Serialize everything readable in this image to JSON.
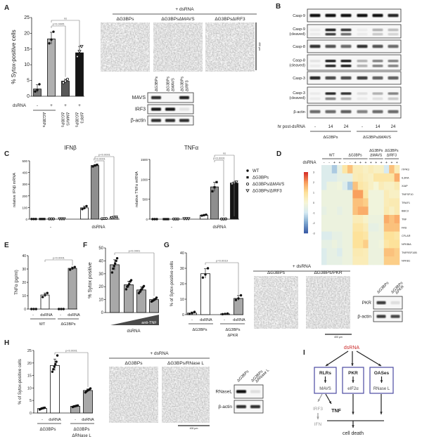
{
  "panel_labels": {
    "a": "A",
    "b": "B",
    "c": "C",
    "d": "D",
    "e": "E",
    "f": "F",
    "g": "G",
    "h": "H",
    "i": "I"
  },
  "colors": {
    "accent_red": "#cc2b2b",
    "diagram_box": "#4b4aa2",
    "inhibited_path": "#9a9a9a"
  },
  "chart_data": [
    {
      "id": "A",
      "type": "bar",
      "ylabel": "% Sytox-positive cells",
      "ylim": [
        0,
        25
      ],
      "yticks": [
        0,
        5,
        10,
        15,
        20,
        25
      ],
      "row_label": "dsRNA",
      "dsrna": [
        "-",
        "+",
        "+",
        "+"
      ],
      "genotype_labels": [
        [
          "ΔG3BPs"
        ],
        [
          "ΔG3BPs",
          "ΔMAVS"
        ],
        [
          "ΔG3BPs",
          "ΔIRF3"
        ]
      ],
      "values": [
        2.3,
        18.2,
        4.8,
        13.8
      ],
      "points": [
        [
          1.5,
          2.0,
          3.8
        ],
        [
          16.8,
          18.0,
          20.5
        ],
        [
          4.3,
          4.8,
          5.4
        ],
        [
          12.5,
          14.2,
          15.8
        ]
      ],
      "fills": [
        "#7a7a7a",
        "#b0b0b0",
        "#585858",
        "#151515"
      ],
      "markers": [
        "dot",
        "dot",
        "circle",
        "triangle"
      ],
      "significance": [
        {
          "from": 1,
          "to": 2,
          "label": "p=0.0005"
        },
        {
          "from": 1,
          "to": 3,
          "label": "ns"
        }
      ]
    },
    {
      "id": "C-IFNb",
      "type": "bar",
      "title": "IFNβ",
      "ylabel": "relative IFNβ mRNA",
      "ylim": [
        0,
        500
      ],
      "yticks": [
        0,
        100,
        200,
        300,
        400,
        500
      ],
      "groups": [
        "-",
        "dsRNA"
      ],
      "series": [
        {
          "name": "WT",
          "values": [
            1,
            97
          ],
          "points": [
            [
              1,
              1,
              1
            ],
            [
              86,
              95,
              112
            ]
          ],
          "fill": "#ffffff",
          "marker": "dot"
        },
        {
          "name": "ΔG3BPs",
          "values": [
            1,
            460
          ],
          "points": [
            [
              1,
              1,
              1
            ],
            [
              452,
              460,
              466
            ]
          ],
          "fill": "#8e8e8e",
          "marker": "square"
        },
        {
          "name": "ΔG3BPs/ΔMAVS",
          "values": [
            2,
            5
          ],
          "points": [
            [
              2,
              2,
              2
            ],
            [
              4,
              5,
              6
            ]
          ],
          "fill": "#ffffff",
          "marker": "circle"
        },
        {
          "name": "ΔG3BPs/ΔIRF3",
          "values": [
            2,
            15
          ],
          "points": [
            [
              2,
              2,
              2
            ],
            [
              12,
              15,
              18
            ]
          ],
          "fill": "#ffffff",
          "marker": "triangle"
        }
      ],
      "significance": [
        {
          "from": 5,
          "to": 7,
          "label": "p<0.0001"
        },
        {
          "from": 5,
          "to": 6,
          "label": "p<0.0001"
        }
      ]
    },
    {
      "id": "C-TNFa",
      "type": "bar",
      "title": "TNFα",
      "ylabel": "relative TNFα mRNA",
      "ylim": [
        0,
        1500
      ],
      "yticks": [
        0,
        500,
        1000,
        1500
      ],
      "groups": [
        "-",
        "dsRNA"
      ],
      "series": [
        {
          "name": "WT",
          "values": [
            0,
            100
          ],
          "points": [
            [
              0,
              0,
              0
            ],
            [
              88,
              100,
              112
            ]
          ],
          "fill": "#ffffff",
          "marker": "dot"
        },
        {
          "name": "ΔG3BPs",
          "values": [
            0,
            810
          ],
          "points": [
            [
              0,
              0,
              0
            ],
            [
              700,
              800,
              930
            ]
          ],
          "fill": "#8e8e8e",
          "marker": "square"
        },
        {
          "name": "ΔG3BPs/ΔMAVS",
          "values": [
            5,
            5
          ],
          "points": [
            [
              5,
              5,
              5
            ],
            [
              4,
              5,
              6
            ]
          ],
          "fill": "#ffffff",
          "marker": "circle"
        },
        {
          "name": "ΔG3BPs/ΔIRF3",
          "values": [
            10,
            905
          ],
          "points": [
            [
              10,
              10,
              10
            ],
            [
              880,
              905,
              930
            ]
          ],
          "fill": "#151515",
          "marker": "triangle"
        }
      ],
      "significance": [
        {
          "from": 5,
          "to": 7,
          "label": "ns"
        },
        {
          "from": 5,
          "to": 6,
          "label": "p<0.0001"
        }
      ],
      "legend_position": "right"
    },
    {
      "id": "D",
      "type": "heatmap",
      "row_label": "dsRNA",
      "column_groups": [
        {
          "label": [
            "WT"
          ],
          "dsrna": [
            "-",
            "-",
            "+",
            "+"
          ]
        },
        {
          "label": [
            "ΔG3BPs"
          ],
          "dsrna": [
            "-",
            "-",
            "+",
            "+",
            "+"
          ]
        },
        {
          "label": [
            "ΔG3BPs",
            "ΔMAVS"
          ],
          "dsrna": [
            "+",
            "+",
            "+"
          ]
        },
        {
          "label": [
            "ΔG3BPs",
            "ΔIRF3"
          ],
          "dsrna": [
            "+",
            "+",
            "+"
          ]
        }
      ],
      "genes": [
        "ITPR3",
        "IL3RA",
        "XIAP",
        "TNFSF10",
        "TRAF1",
        "BBC3",
        "TNF",
        "FAS",
        "CFLAR",
        "NFKBIA",
        "TNFRSF10B",
        "NFKB1"
      ],
      "values": [
        [
          -0.8,
          -0.8,
          -1.5,
          -0.5,
          0.8,
          1.5,
          0.5,
          0.5,
          0.3,
          0.5,
          0.3,
          0.3,
          -1.0,
          1.5,
          0.5
        ],
        [
          -0.8,
          -0.8,
          -0.8,
          -0.5,
          -0.5,
          -0.5,
          0.5,
          0.6,
          0.4,
          0.3,
          0.8,
          0.8,
          0.8,
          0.8,
          1.8
        ],
        [
          -0.8,
          -0.3,
          -0.3,
          -0.2,
          -0.8,
          -1.5,
          1.5,
          0.8,
          0.6,
          0.3,
          0.0,
          0.5,
          0.3,
          0.3,
          0.6
        ],
        [
          -0.3,
          -0.3,
          -0.3,
          -0.3,
          -0.3,
          -0.3,
          2.0,
          2.0,
          0.8,
          -0.2,
          -0.2,
          -0.2,
          0.5,
          0.3,
          0.3
        ],
        [
          -0.3,
          -0.3,
          -0.3,
          -0.3,
          -0.3,
          -0.3,
          1.5,
          1.5,
          1.3,
          -0.2,
          -0.2,
          -0.2,
          0.5,
          0.6,
          0.6
        ],
        [
          -0.5,
          -0.3,
          -0.3,
          -0.5,
          -0.3,
          -0.3,
          1.5,
          1.8,
          1.8,
          -0.2,
          -0.2,
          -0.2,
          0.6,
          0.3,
          0.6
        ],
        [
          -0.3,
          -0.3,
          -0.3,
          -0.3,
          -0.3,
          -0.3,
          0.5,
          0.5,
          0.2,
          -0.3,
          -0.3,
          -0.3,
          1.8,
          1.5,
          1.8
        ],
        [
          -0.3,
          -0.3,
          -0.3,
          -0.3,
          -0.3,
          -0.3,
          0.8,
          0.8,
          0.5,
          -0.5,
          -0.5,
          -0.3,
          1.5,
          1.5,
          1.5
        ],
        [
          -0.8,
          -0.8,
          -0.5,
          -0.5,
          -0.3,
          -0.3,
          1.0,
          1.0,
          0.8,
          -0.3,
          -0.3,
          -0.3,
          1.0,
          1.0,
          0.8
        ],
        [
          -0.5,
          -0.5,
          -0.3,
          -0.5,
          -0.3,
          -0.3,
          1.0,
          1.0,
          1.3,
          -0.3,
          -0.3,
          -0.2,
          0.8,
          1.0,
          1.0
        ],
        [
          -0.8,
          -0.5,
          -0.5,
          -0.8,
          -0.3,
          -0.3,
          0.6,
          0.6,
          0.5,
          -0.3,
          -0.3,
          -0.3,
          1.5,
          1.5,
          1.3
        ],
        [
          -0.8,
          -0.5,
          -0.5,
          -0.5,
          -0.3,
          -0.3,
          0.5,
          0.5,
          0.5,
          -0.3,
          -0.3,
          -0.3,
          1.3,
          1.3,
          1.3
        ]
      ],
      "colorbar_ticks": [
        3,
        2,
        1,
        0,
        -1,
        -2,
        -3
      ],
      "colormap": [
        "#3b5ca6",
        "#7fa9d0",
        "#d6eaf2",
        "#f6f6d6",
        "#fde29a",
        "#f9a05e",
        "#d7312a"
      ]
    },
    {
      "id": "E",
      "type": "bar",
      "ylabel": "TNFα (pg/ml)",
      "ylim": [
        0,
        40
      ],
      "yticks": [
        0,
        10,
        20,
        30,
        40
      ],
      "dsrna": [
        "-",
        "dsRNA",
        "-",
        "dsRNA"
      ],
      "groups": [
        [
          "WT"
        ],
        [
          "ΔG3BPs"
        ]
      ],
      "values": [
        0,
        10.5,
        0,
        30.5
      ],
      "points": [
        [
          0,
          0,
          0
        ],
        [
          9,
          10.5,
          12
        ],
        [
          0,
          0,
          0
        ],
        [
          29.5,
          30.5,
          31.5
        ]
      ],
      "fills": [
        "#ffffff",
        "#ffffff",
        "#ffffff",
        "#a8a8a8"
      ],
      "markers": [
        "dot",
        "dot",
        "dot",
        "dot"
      ],
      "significance": [
        {
          "from": 1,
          "to": 3,
          "label": "p<0.0001"
        }
      ]
    },
    {
      "id": "F",
      "type": "bar",
      "ylabel": "% Sytox positive",
      "ylim": [
        0,
        50
      ],
      "yticks": [
        0,
        10,
        20,
        30,
        40,
        50
      ],
      "xlabel": "dsRNA",
      "wedge_label": "anti-TNF",
      "values": [
        37,
        21.5,
        17.5,
        10
      ],
      "points": [
        [
          31,
          34,
          36,
          38,
          40,
          42
        ],
        [
          18,
          20,
          21,
          22,
          24,
          25
        ],
        [
          15,
          16,
          17.5,
          18,
          19.5,
          20.5
        ],
        [
          8.5,
          9,
          9.5,
          10,
          10.5,
          11.5
        ]
      ],
      "fills": [
        "#a8a8a8",
        "#a8a8a8",
        "#a8a8a8",
        "#a8a8a8"
      ],
      "markers": [
        "dot",
        "dot",
        "dot",
        "dot"
      ],
      "significance": [
        {
          "from": 0,
          "to": 3,
          "label": "p<0.0001"
        }
      ]
    },
    {
      "id": "G",
      "type": "bar",
      "ylabel": "% of Sytox-positive cells",
      "ylim": [
        0,
        40
      ],
      "yticks": [
        0,
        10,
        20,
        30,
        40
      ],
      "dsrna": [
        "-",
        "dsRNA",
        "-",
        "dsRNA"
      ],
      "groups": [
        [
          "ΔG3BPs"
        ],
        [
          "ΔG3BPs",
          "ΔPKR"
        ]
      ],
      "values": [
        1,
        26.5,
        0.5,
        10.5
      ],
      "points": [
        [
          0.5,
          1.0,
          1.8
        ],
        [
          24,
          26,
          30
        ],
        [
          0.3,
          0.5,
          0.7
        ],
        [
          9.5,
          10.5,
          12.5
        ]
      ],
      "fills": [
        "#ffffff",
        "#ffffff",
        "#ffffff",
        "#a8a8a8"
      ],
      "markers": [
        "dot",
        "dot",
        "dot",
        "dot"
      ],
      "significance": [
        {
          "from": 1,
          "to": 3,
          "label": "p=0.0019"
        }
      ]
    },
    {
      "id": "H",
      "type": "bar",
      "ylabel": "% of Sytox-positive cells",
      "ylim": [
        0,
        25
      ],
      "yticks": [
        0,
        5,
        10,
        15,
        20,
        25
      ],
      "dsrna": [
        "-",
        "dsRNA",
        "-",
        "dsRNA"
      ],
      "groups": [
        [
          "ΔG3BPs"
        ],
        [
          "ΔG3BPs",
          "ΔRNase L"
        ]
      ],
      "values": [
        1.8,
        19,
        2.7,
        9
      ],
      "points": [
        [
          1.4,
          1.6,
          1.8,
          1.9,
          2.0,
          2.1
        ],
        [
          16.5,
          17.5,
          18.5,
          19.5,
          20.5,
          23
        ],
        [
          2.4,
          2.6,
          2.7,
          2.8,
          2.9,
          3.0
        ],
        [
          8.2,
          8.6,
          9.0,
          9.2,
          9.4,
          9.8
        ]
      ],
      "fills": [
        "#ffffff",
        "#ffffff",
        "#a8a8a8",
        "#a8a8a8"
      ],
      "markers": [
        "dot",
        "dot",
        "dot",
        "dot"
      ],
      "significance": [
        {
          "from": 1,
          "to": 3,
          "label": "p<0.0001"
        }
      ]
    }
  ],
  "panel_a": {
    "micrographs": {
      "header": "+ dsRNA",
      "labels": [
        "ΔG3BPs",
        "ΔG3BPsΔMAVS",
        "ΔG3BPsΔIRF3"
      ],
      "scale_bar": "400 µm"
    },
    "western": {
      "lanes": [
        [
          "ΔG3BPs"
        ],
        [
          "ΔG3BPs",
          "ΔMAVS"
        ],
        [
          "ΔG3BPs",
          "ΔIRF3"
        ]
      ],
      "rows": [
        {
          "label": "MAVS",
          "bands": [
            [
              0.85,
              0.0,
              0.9
            ]
          ]
        },
        {
          "label": "IRF3",
          "bands": [
            [
              0.95,
              0.95,
              0.08
            ]
          ]
        },
        {
          "label": "β-actin",
          "bands": [
            [
              0.85,
              0.85,
              0.85
            ]
          ]
        }
      ]
    }
  },
  "panel_b": {
    "western": {
      "rows": [
        {
          "label": [
            "Casp-9"
          ],
          "bands": [
            [
              1,
              1,
              1,
              1,
              1,
              0.9
            ]
          ]
        },
        {
          "label": [
            "Casp-9",
            "(cleaved)"
          ],
          "bands": [
            [
              0.05,
              0.95,
              0.85,
              0.05,
              0.3,
              0.25
            ],
            [
              0.05,
              0.8,
              0.6,
              0.05,
              0.2,
              0.15
            ]
          ]
        },
        {
          "label": [
            "Casp-8"
          ],
          "bands": [
            [
              0.85,
              0.7,
              0.6,
              0.85,
              0.7,
              0.6
            ]
          ]
        },
        {
          "label": [
            "Casp-8",
            "(cleaved)"
          ],
          "bands": [
            [
              0.08,
              0.95,
              0.95,
              0.3,
              0.5,
              0.5
            ],
            [
              0.05,
              0.9,
              0.95,
              0.3,
              0.5,
              0.5
            ]
          ]
        },
        {
          "label": [
            "Casp-3"
          ],
          "bands": [
            [
              0.9,
              0.75,
              0.75,
              0.8,
              0.65,
              0.65
            ]
          ]
        },
        {
          "label": [
            "Casp-3",
            "(cleaved)"
          ],
          "bands": [
            [
              0.05,
              0.9,
              0.85,
              0.1,
              0.3,
              0.5
            ],
            [
              0.05,
              0.5,
              0.3,
              0.05,
              0.1,
              0.2
            ]
          ]
        },
        {
          "label": [
            "β-actin"
          ],
          "bands": [
            [
              0.6,
              0.6,
              0.65,
              0.5,
              0.6,
              0.6
            ]
          ]
        }
      ]
    },
    "hr_label": "hr post-dsRNA",
    "timepoints": [
      "-",
      "14",
      "24",
      "-",
      "14",
      "24"
    ],
    "groups": [
      "ΔG3BPs",
      "ΔG3BPsΔMAVS"
    ]
  },
  "panel_g": {
    "micrographs": {
      "header": "+ dsRNA",
      "labels": [
        "ΔG3BPs",
        "ΔG3BPs/PKR"
      ],
      "scale_bar": "400 µm"
    },
    "western": {
      "lanes": [
        [
          "ΔG3BPs"
        ],
        [
          "ΔG3BPs",
          "ΔPKR"
        ]
      ],
      "rows": [
        {
          "label": "PKR",
          "bands": [
            [
              0.8,
              0.1
            ]
          ]
        },
        {
          "label": "β-actin",
          "bands": [
            [
              0.8,
              0.75
            ]
          ]
        }
      ]
    }
  },
  "panel_h": {
    "micrographs": {
      "header": "+ dsRNA",
      "labels": [
        "ΔG3BPs",
        "ΔG3BPs/RNase L"
      ],
      "scale_bar": "400 µm"
    },
    "western": {
      "lanes": [
        [
          "ΔG3BPs"
        ],
        [
          "ΔG3BPs",
          "ΔRNase L"
        ]
      ],
      "rows": [
        {
          "label": "RNaseL",
          "bands": [
            [
              1.0,
              0.1
            ]
          ]
        },
        {
          "label": "β-actin",
          "bands": [
            [
              0.85,
              0.85
            ]
          ]
        }
      ]
    }
  },
  "panel_i": {
    "input": "dsRNA",
    "sensors": [
      {
        "name": "RLRs",
        "effector": "MAVS"
      },
      {
        "name": "PKR",
        "effector": "eIF2α"
      },
      {
        "name": "OASes",
        "effector": "RNase L"
      }
    ],
    "irf3": "IRF3",
    "ifn": "IFN",
    "tnf": "TNF",
    "outcome": "cell death"
  }
}
